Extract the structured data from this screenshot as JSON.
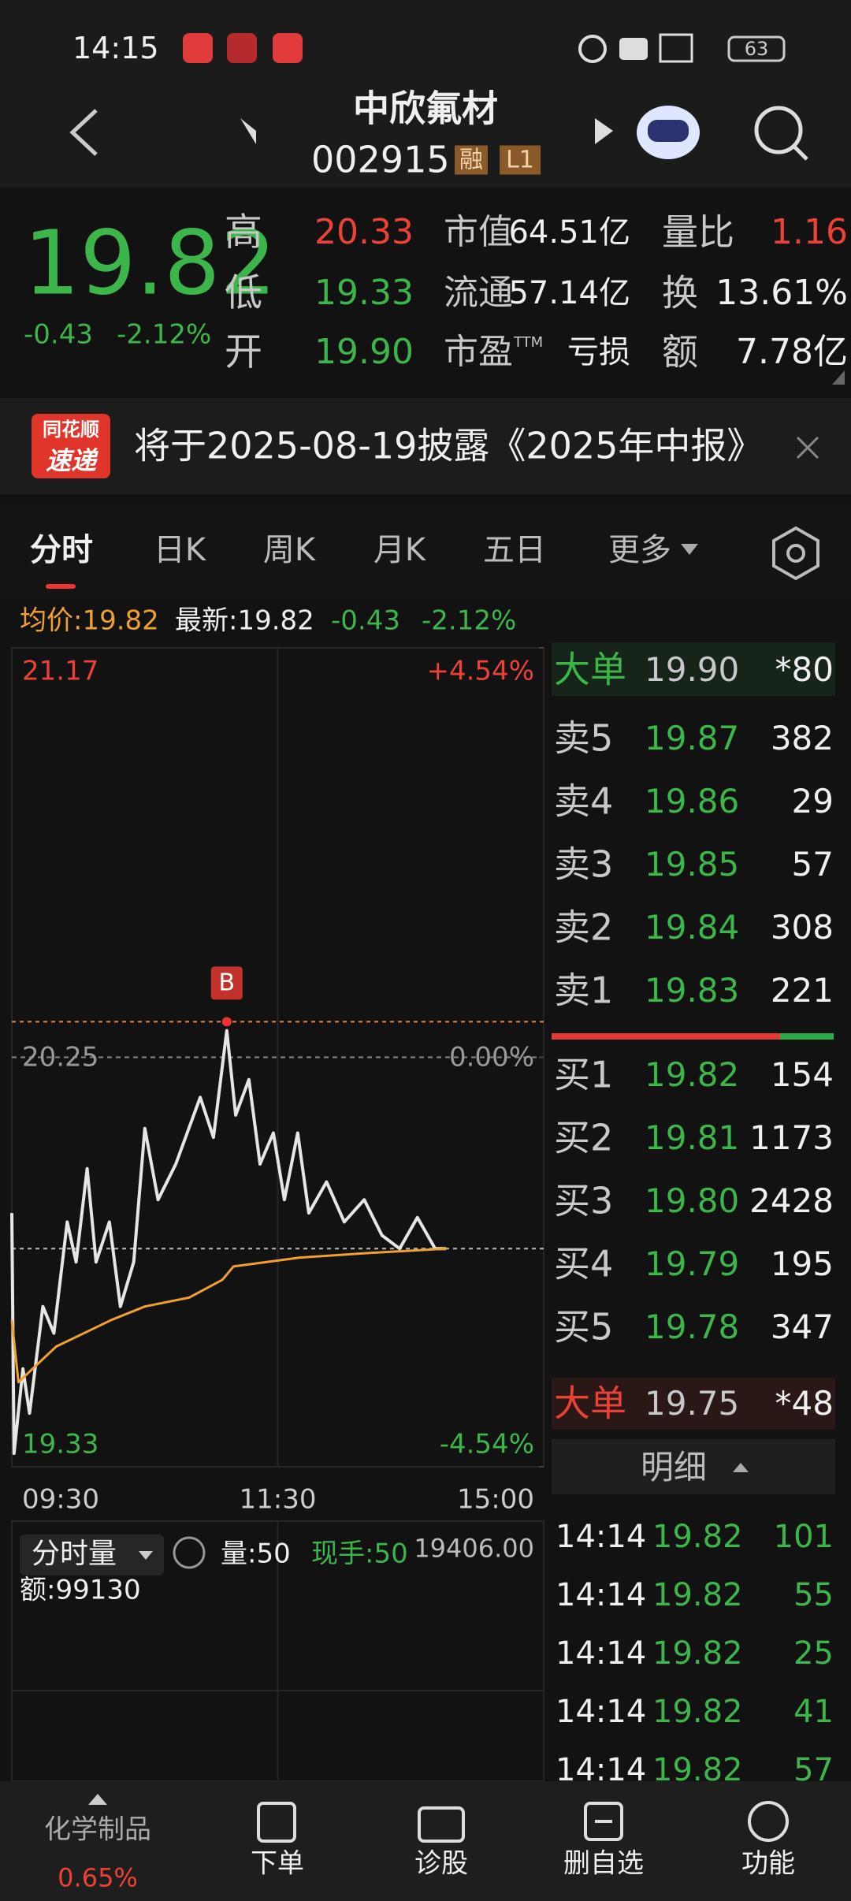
{
  "status_bar": {
    "time": "14:15",
    "battery": "63"
  },
  "header": {
    "name": "中欣氟材",
    "code": "002915",
    "tags": [
      "融",
      "L1"
    ]
  },
  "quote": {
    "price": "19.82",
    "change": "-0.43",
    "change_pct": "-2.12%",
    "stats": [
      {
        "label": "高",
        "value": "20.33"
      },
      {
        "label": "低",
        "value": "19.33"
      },
      {
        "label": "开",
        "value": "19.90"
      },
      {
        "label": "市值",
        "value": "64.51亿"
      },
      {
        "label": "流通",
        "value": "57.14亿"
      },
      {
        "label": "市盈",
        "sup": "TTM",
        "value": "亏损"
      },
      {
        "label": "量比",
        "value": "1.16"
      },
      {
        "label": "换",
        "value": "13.61%"
      },
      {
        "label": "额",
        "value": "7.78亿"
      }
    ]
  },
  "notice": {
    "badge_top": "同花顺",
    "badge_bottom": "速递",
    "text": "将于2025-08-19披露《2025年中报》"
  },
  "tabs": [
    "分时",
    "日K",
    "周K",
    "月K",
    "五日",
    "更多"
  ],
  "info": {
    "avg": "均价:19.82",
    "latest": "最新:19.82",
    "change": "-0.43",
    "change_pct": "-2.12%"
  },
  "chart_data": {
    "type": "line",
    "series": [
      {
        "color": "#e6e6e6",
        "x": [
          0,
          1,
          5,
          8,
          14,
          19,
          25,
          29,
          34,
          38,
          44,
          49,
          55,
          60,
          66,
          74,
          85,
          91,
          97,
          101,
          107,
          112,
          118,
          123,
          129,
          134,
          142,
          150,
          159,
          167,
          175,
          183,
          191,
          196
        ],
        "values": [
          19.9,
          19.36,
          19.55,
          19.45,
          19.69,
          19.63,
          19.88,
          19.79,
          20.0,
          19.79,
          19.88,
          19.69,
          19.79,
          20.09,
          19.93,
          20.01,
          20.16,
          20.07,
          20.31,
          20.12,
          20.2,
          20.01,
          20.08,
          19.93,
          20.08,
          19.9,
          19.97,
          19.88,
          19.93,
          19.85,
          19.82,
          19.89,
          19.82,
          19.82
        ]
      },
      {
        "color": "#f0a030",
        "x": [
          0,
          3,
          20,
          45,
          60,
          80,
          95,
          100,
          130,
          160,
          196
        ],
        "values": [
          19.66,
          19.52,
          19.6,
          19.66,
          19.69,
          19.71,
          19.75,
          19.78,
          19.8,
          19.81,
          19.82
        ]
      }
    ],
    "xlim": [
      0,
      240
    ],
    "xticks": [
      {
        "value": 0,
        "label": "09:30"
      },
      {
        "value": 120,
        "label": "11:30"
      },
      {
        "value": 240,
        "label": "15:00"
      }
    ],
    "ylim": [
      19.33,
      21.17
    ],
    "yticks": [
      21.17,
      20.25,
      19.33
    ],
    "y2lim": [
      -4.54,
      4.54
    ],
    "y2ticks": [
      {
        "value": 4.54,
        "label": "+4.54%"
      },
      {
        "value": 0,
        "label": "0.00%"
      },
      {
        "value": -4.54,
        "label": "-4.54%"
      }
    ],
    "reference_lines": [
      {
        "value": 20.33,
        "color": "#e8833a"
      },
      {
        "value": 19.82,
        "color": "#bbbbbb"
      }
    ],
    "marker": {
      "label": "B",
      "x": 97,
      "value": 20.33
    }
  },
  "volume_panel": {
    "selector": "分时量",
    "volume": "量:50",
    "current": "现手:50",
    "max": "19406.00",
    "amount": "额:99130"
  },
  "order_book": {
    "big_top": {
      "label": "大单",
      "price": "19.90",
      "qty": "*80"
    },
    "asks": [
      {
        "label": "卖5",
        "price": "19.87",
        "qty": "382"
      },
      {
        "label": "卖4",
        "price": "19.86",
        "qty": "29"
      },
      {
        "label": "卖3",
        "price": "19.85",
        "qty": "57"
      },
      {
        "label": "卖2",
        "price": "19.84",
        "qty": "308"
      },
      {
        "label": "卖1",
        "price": "19.83",
        "qty": "221"
      }
    ],
    "bids": [
      {
        "label": "买1",
        "price": "19.82",
        "qty": "154"
      },
      {
        "label": "买2",
        "price": "19.81",
        "qty": "1173"
      },
      {
        "label": "买3",
        "price": "19.80",
        "qty": "2428"
      },
      {
        "label": "买4",
        "price": "19.79",
        "qty": "195"
      },
      {
        "label": "买5",
        "price": "19.78",
        "qty": "347"
      }
    ],
    "big_bottom": {
      "label": "大单",
      "price": "19.75",
      "qty": "*48"
    }
  },
  "detail": {
    "title": "明细",
    "rows": [
      [
        "14:14",
        "19.82",
        "101"
      ],
      [
        "14:14",
        "19.82",
        "55"
      ],
      [
        "14:14",
        "19.82",
        "25"
      ],
      [
        "14:14",
        "19.82",
        "41"
      ],
      [
        "14:14",
        "19.82",
        "57"
      ]
    ]
  },
  "bottom_nav": {
    "sector": "化学制品",
    "sector_change": "0.65%",
    "items": [
      "下单",
      "诊股",
      "删自选",
      "功能"
    ]
  }
}
